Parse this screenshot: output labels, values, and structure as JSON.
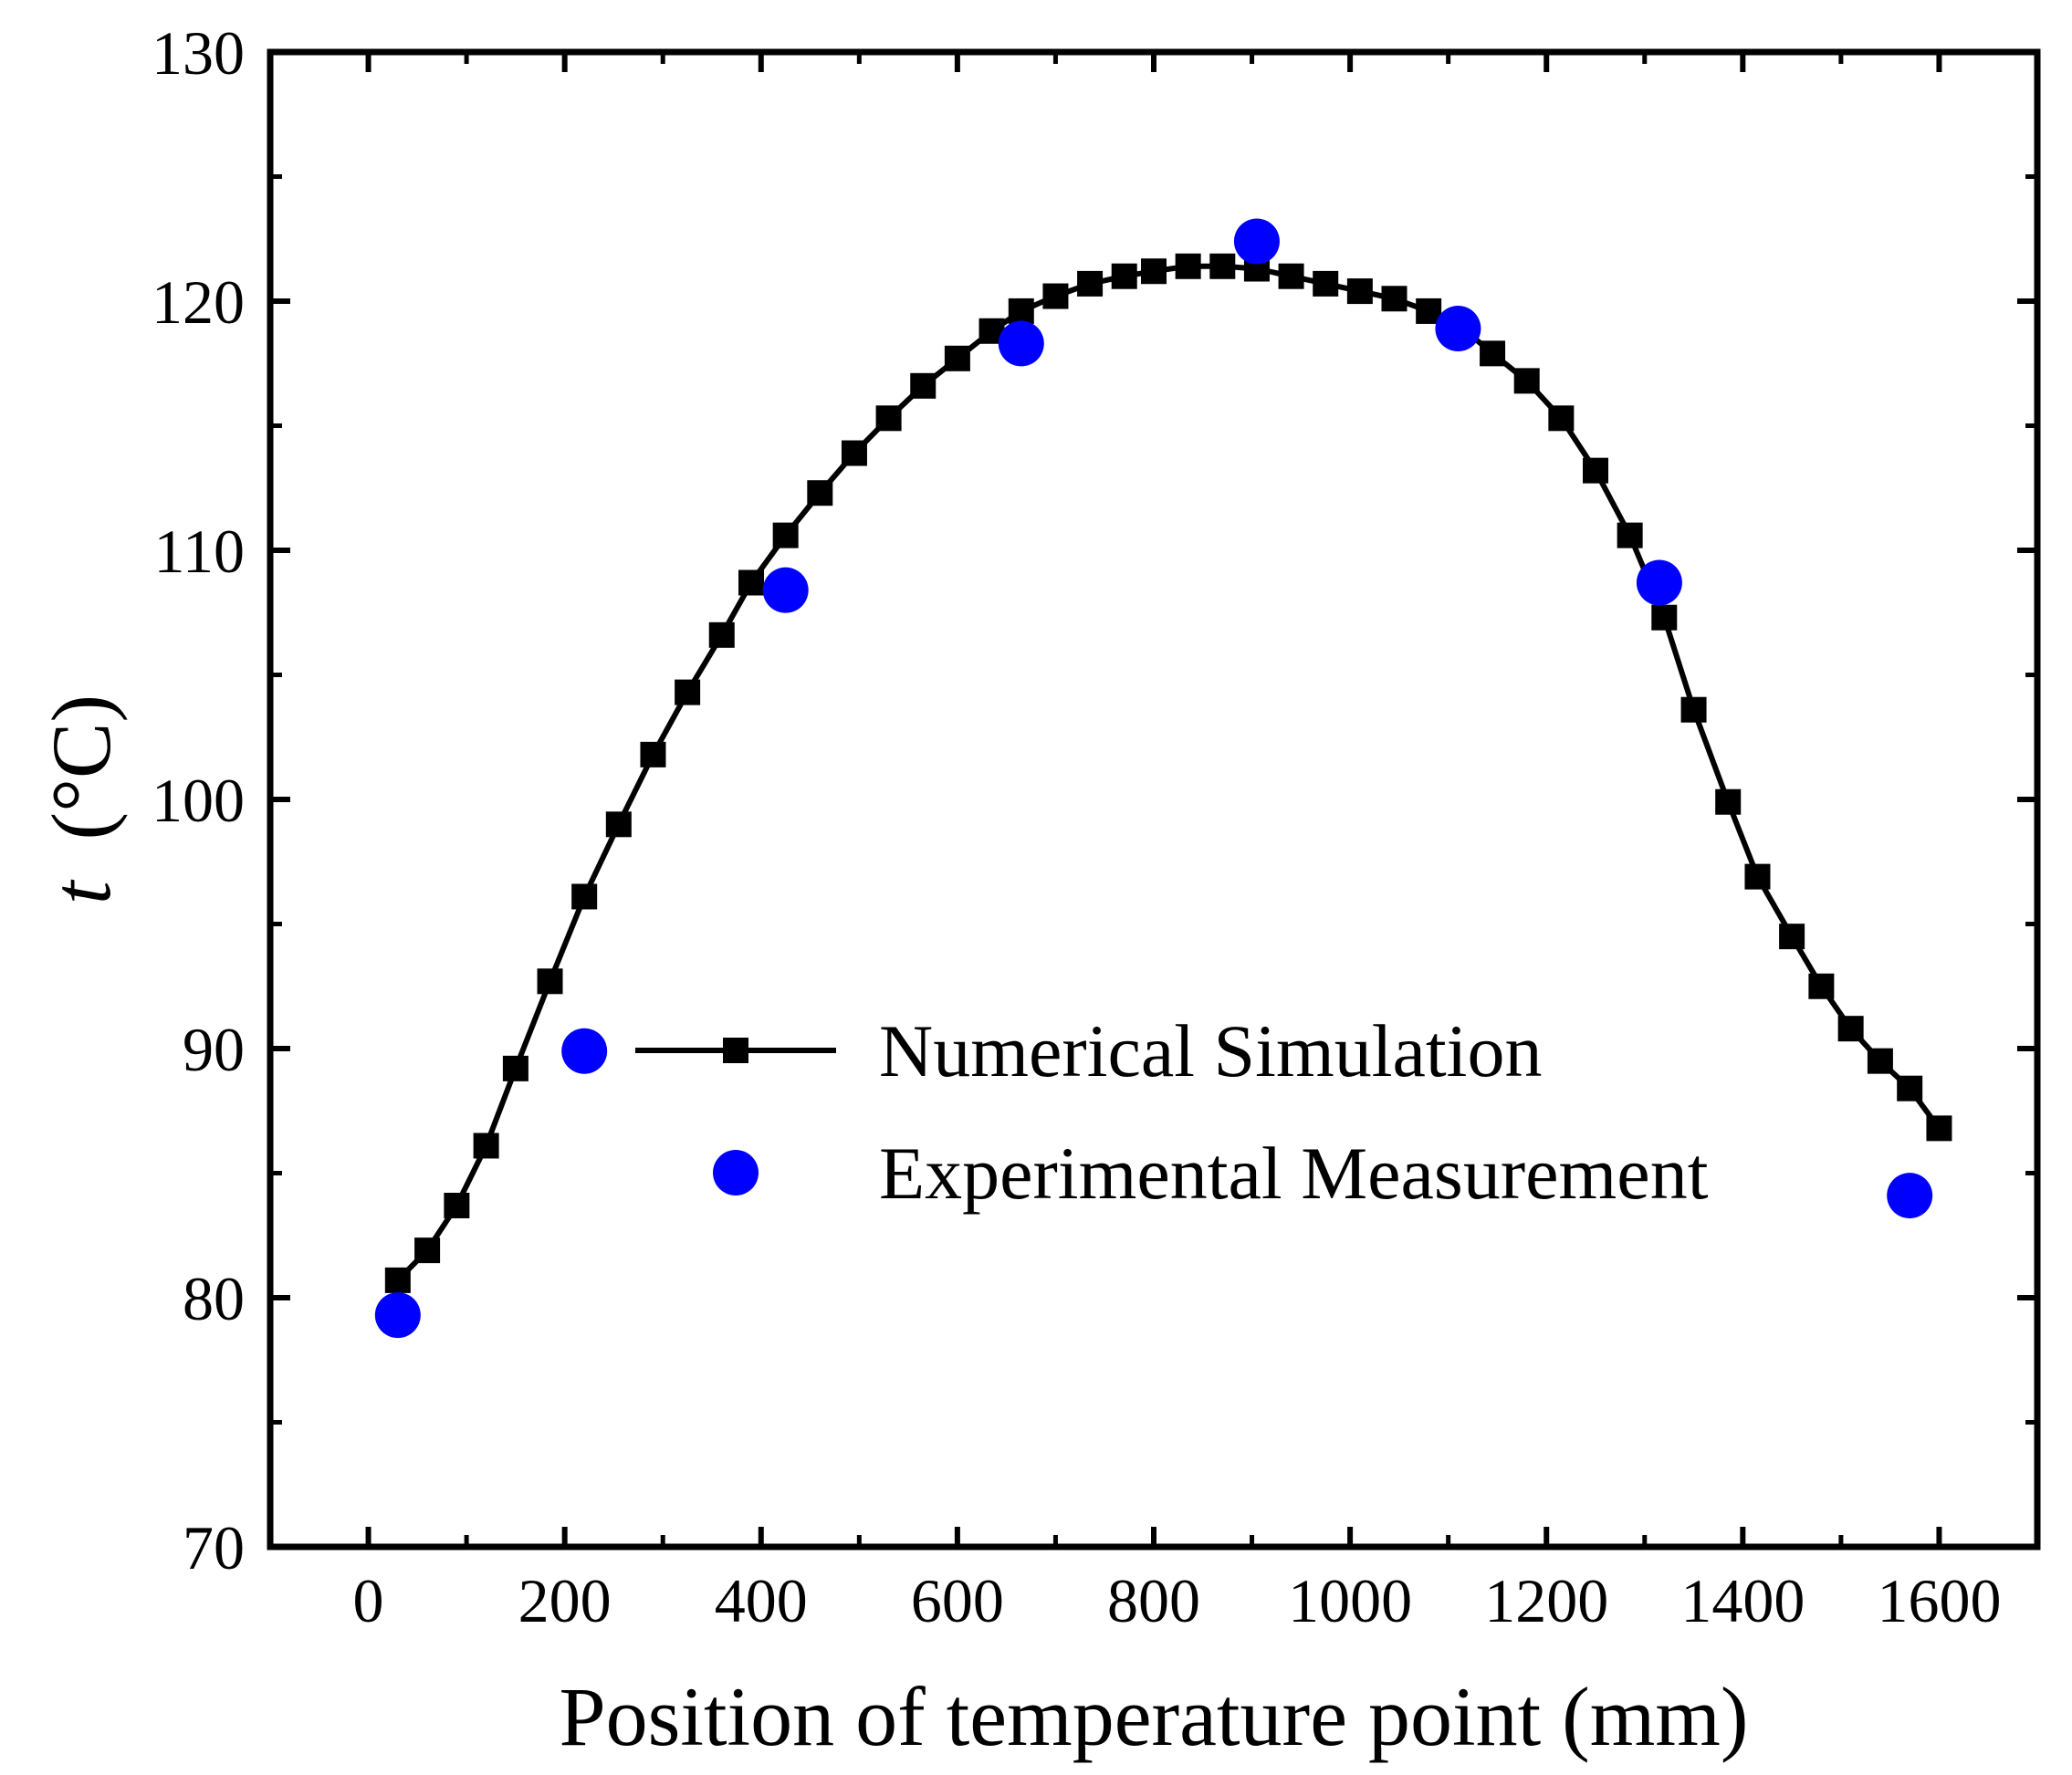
{
  "chart_data": {
    "type": "scatter",
    "title": "",
    "xlabel": "Position of temperature point (mm)",
    "ylabel_var": "t",
    "ylabel_unit": "(°C)",
    "xlim": [
      -100,
      1700
    ],
    "ylim": [
      70,
      130
    ],
    "xticks": [
      0,
      200,
      400,
      600,
      800,
      1000,
      1200,
      1400,
      1600
    ],
    "yticks": [
      70,
      80,
      90,
      100,
      110,
      120,
      130
    ],
    "yminor_step": 5,
    "xtick_labels": [
      "0",
      "200",
      "400",
      "600",
      "800",
      "1000",
      "1200",
      "1400",
      "1600"
    ],
    "ytick_labels": [
      "70",
      "80",
      "90",
      "100",
      "110",
      "120",
      "130"
    ],
    "legend_position": "center-right",
    "series": [
      {
        "name": "Numerical Simulation",
        "style": "line-square",
        "color": "#000000",
        "x": [
          30,
          60,
          90,
          120,
          150,
          185,
          220,
          255,
          290,
          325,
          360,
          390,
          425,
          460,
          495,
          530,
          565,
          600,
          635,
          665,
          700,
          735,
          770,
          800,
          835,
          870,
          905,
          940,
          975,
          1010,
          1045,
          1080,
          1115,
          1145,
          1180,
          1215,
          1250,
          1285,
          1320,
          1350,
          1385,
          1415,
          1450,
          1480,
          1510,
          1540,
          1570,
          1600
        ],
        "y": [
          80.7,
          81.9,
          83.7,
          86.1,
          89.2,
          92.7,
          96.1,
          99.0,
          101.8,
          104.3,
          106.6,
          108.7,
          110.6,
          112.3,
          113.9,
          115.3,
          116.6,
          117.7,
          118.8,
          119.6,
          120.2,
          120.7,
          121.0,
          121.2,
          121.4,
          121.4,
          121.3,
          121.0,
          120.7,
          120.4,
          120.1,
          119.6,
          118.9,
          117.9,
          116.8,
          115.3,
          113.2,
          110.6,
          107.3,
          103.6,
          99.9,
          96.9,
          94.5,
          92.5,
          90.8,
          89.5,
          88.4,
          86.8
        ]
      },
      {
        "name": "Experimental Measurement",
        "style": "circle",
        "color": "#0000FF",
        "x": [
          30,
          220,
          425,
          665,
          905,
          1110,
          1315,
          1570
        ],
        "y": [
          79.3,
          89.9,
          108.4,
          118.3,
          122.4,
          118.9,
          108.7,
          84.1
        ]
      }
    ]
  }
}
